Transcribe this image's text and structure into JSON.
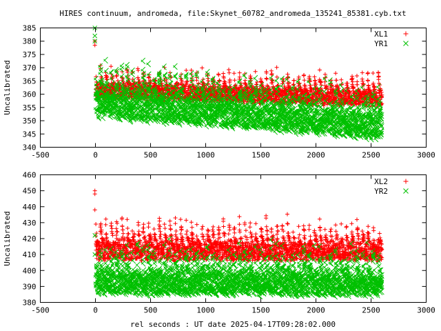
{
  "colors": {
    "red": "#ff0000",
    "green": "#00c000",
    "axis": "#000000",
    "background": "#ffffff"
  },
  "chart_data": [
    {
      "type": "scatter",
      "title": "HIRES continuum, andromeda, file:Skynet_60782_andromeda_135241_85381.cyb.txt",
      "xlabel": "",
      "ylabel": "Uncalibrated",
      "xlim": [
        -500,
        3000
      ],
      "ylim": [
        340,
        385
      ],
      "xticks": [
        -500,
        0,
        500,
        1000,
        1500,
        2000,
        2500,
        3000
      ],
      "yticks": [
        340,
        345,
        350,
        355,
        360,
        365,
        370,
        375,
        380,
        385
      ],
      "legend_position": "top-right",
      "series": [
        {
          "name": "XL1",
          "marker": "plus",
          "color": "#ff0000",
          "x_range": [
            -5,
            2600
          ],
          "cycle_seconds": 48.5,
          "trend_low": [
            358,
            355
          ],
          "trend_high": [
            372,
            369
          ],
          "outliers": [
            [
              -5,
              380
            ],
            [
              -5,
              378.5
            ]
          ]
        },
        {
          "name": "YR1",
          "marker": "cross",
          "color": "#00c000",
          "x_range": [
            -5,
            2600
          ],
          "cycle_seconds": 48.5,
          "trend_low": [
            350,
            342
          ],
          "trend_high": [
            375,
            365
          ],
          "outliers": [
            [
              -5,
              385
            ],
            [
              -5,
              382
            ],
            [
              -5,
              380
            ]
          ]
        }
      ]
    },
    {
      "type": "scatter",
      "title": "",
      "xlabel": "rel seconds : UT date 2025-04-17T09:28:02.000",
      "ylabel": "Uncalibrated",
      "xlim": [
        -500,
        3000
      ],
      "ylim": [
        380,
        460
      ],
      "xticks": [
        -500,
        0,
        500,
        1000,
        1500,
        2000,
        2500,
        3000
      ],
      "yticks": [
        380,
        390,
        400,
        410,
        420,
        430,
        440,
        450,
        460
      ],
      "legend_position": "top-right",
      "series": [
        {
          "name": "XL2",
          "marker": "plus",
          "color": "#ff0000",
          "x_range": [
            -5,
            2600
          ],
          "cycle_seconds": 48.5,
          "trend_low": [
            405,
            405
          ],
          "trend_high": [
            438,
            433
          ],
          "outliers": [
            [
              -5,
              450
            ],
            [
              -5,
              448
            ],
            [
              -5,
              438
            ]
          ]
        },
        {
          "name": "YR2",
          "marker": "cross",
          "color": "#00c000",
          "x_range": [
            -5,
            2600
          ],
          "cycle_seconds": 48.5,
          "trend_low": [
            383,
            382
          ],
          "trend_high": [
            420,
            418
          ],
          "outliers": [
            [
              -5,
              422
            ],
            [
              -5,
              410
            ]
          ]
        }
      ]
    }
  ]
}
